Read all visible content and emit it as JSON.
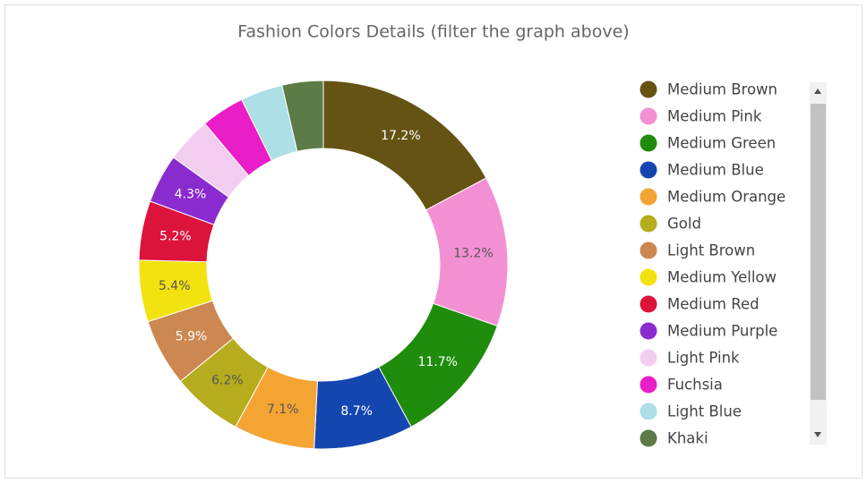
{
  "chart_data": {
    "type": "donut",
    "title": "Fashion Colors Details (filter the graph above)",
    "categories": [
      "Medium Brown",
      "Medium Pink",
      "Medium Green",
      "Medium Blue",
      "Medium Orange",
      "Gold",
      "Light Brown",
      "Medium Yellow",
      "Medium Red",
      "Medium Purple",
      "Light Pink",
      "Fuchsia",
      "Light Blue",
      "Khaki"
    ],
    "values": [
      17.2,
      13.2,
      11.7,
      8.7,
      7.1,
      6.2,
      5.9,
      5.4,
      5.2,
      4.3,
      4.0,
      3.8,
      3.7,
      3.6
    ],
    "value_labels": [
      "17.2%",
      "13.2%",
      "11.7%",
      "8.7%",
      "7.1%",
      "6.2%",
      "5.9%",
      "5.4%",
      "5.2%",
      "4.3%",
      null,
      null,
      null,
      null
    ],
    "colors": [
      "#655313",
      "#f390d4",
      "#1f8c0b",
      "#1446b0",
      "#f4a433",
      "#b5ac1e",
      "#cd8750",
      "#f2e20f",
      "#dc143c",
      "#8a2bd0",
      "#f3cdef",
      "#ea1ec8",
      "#acdfe6",
      "#5c7b46"
    ]
  }
}
